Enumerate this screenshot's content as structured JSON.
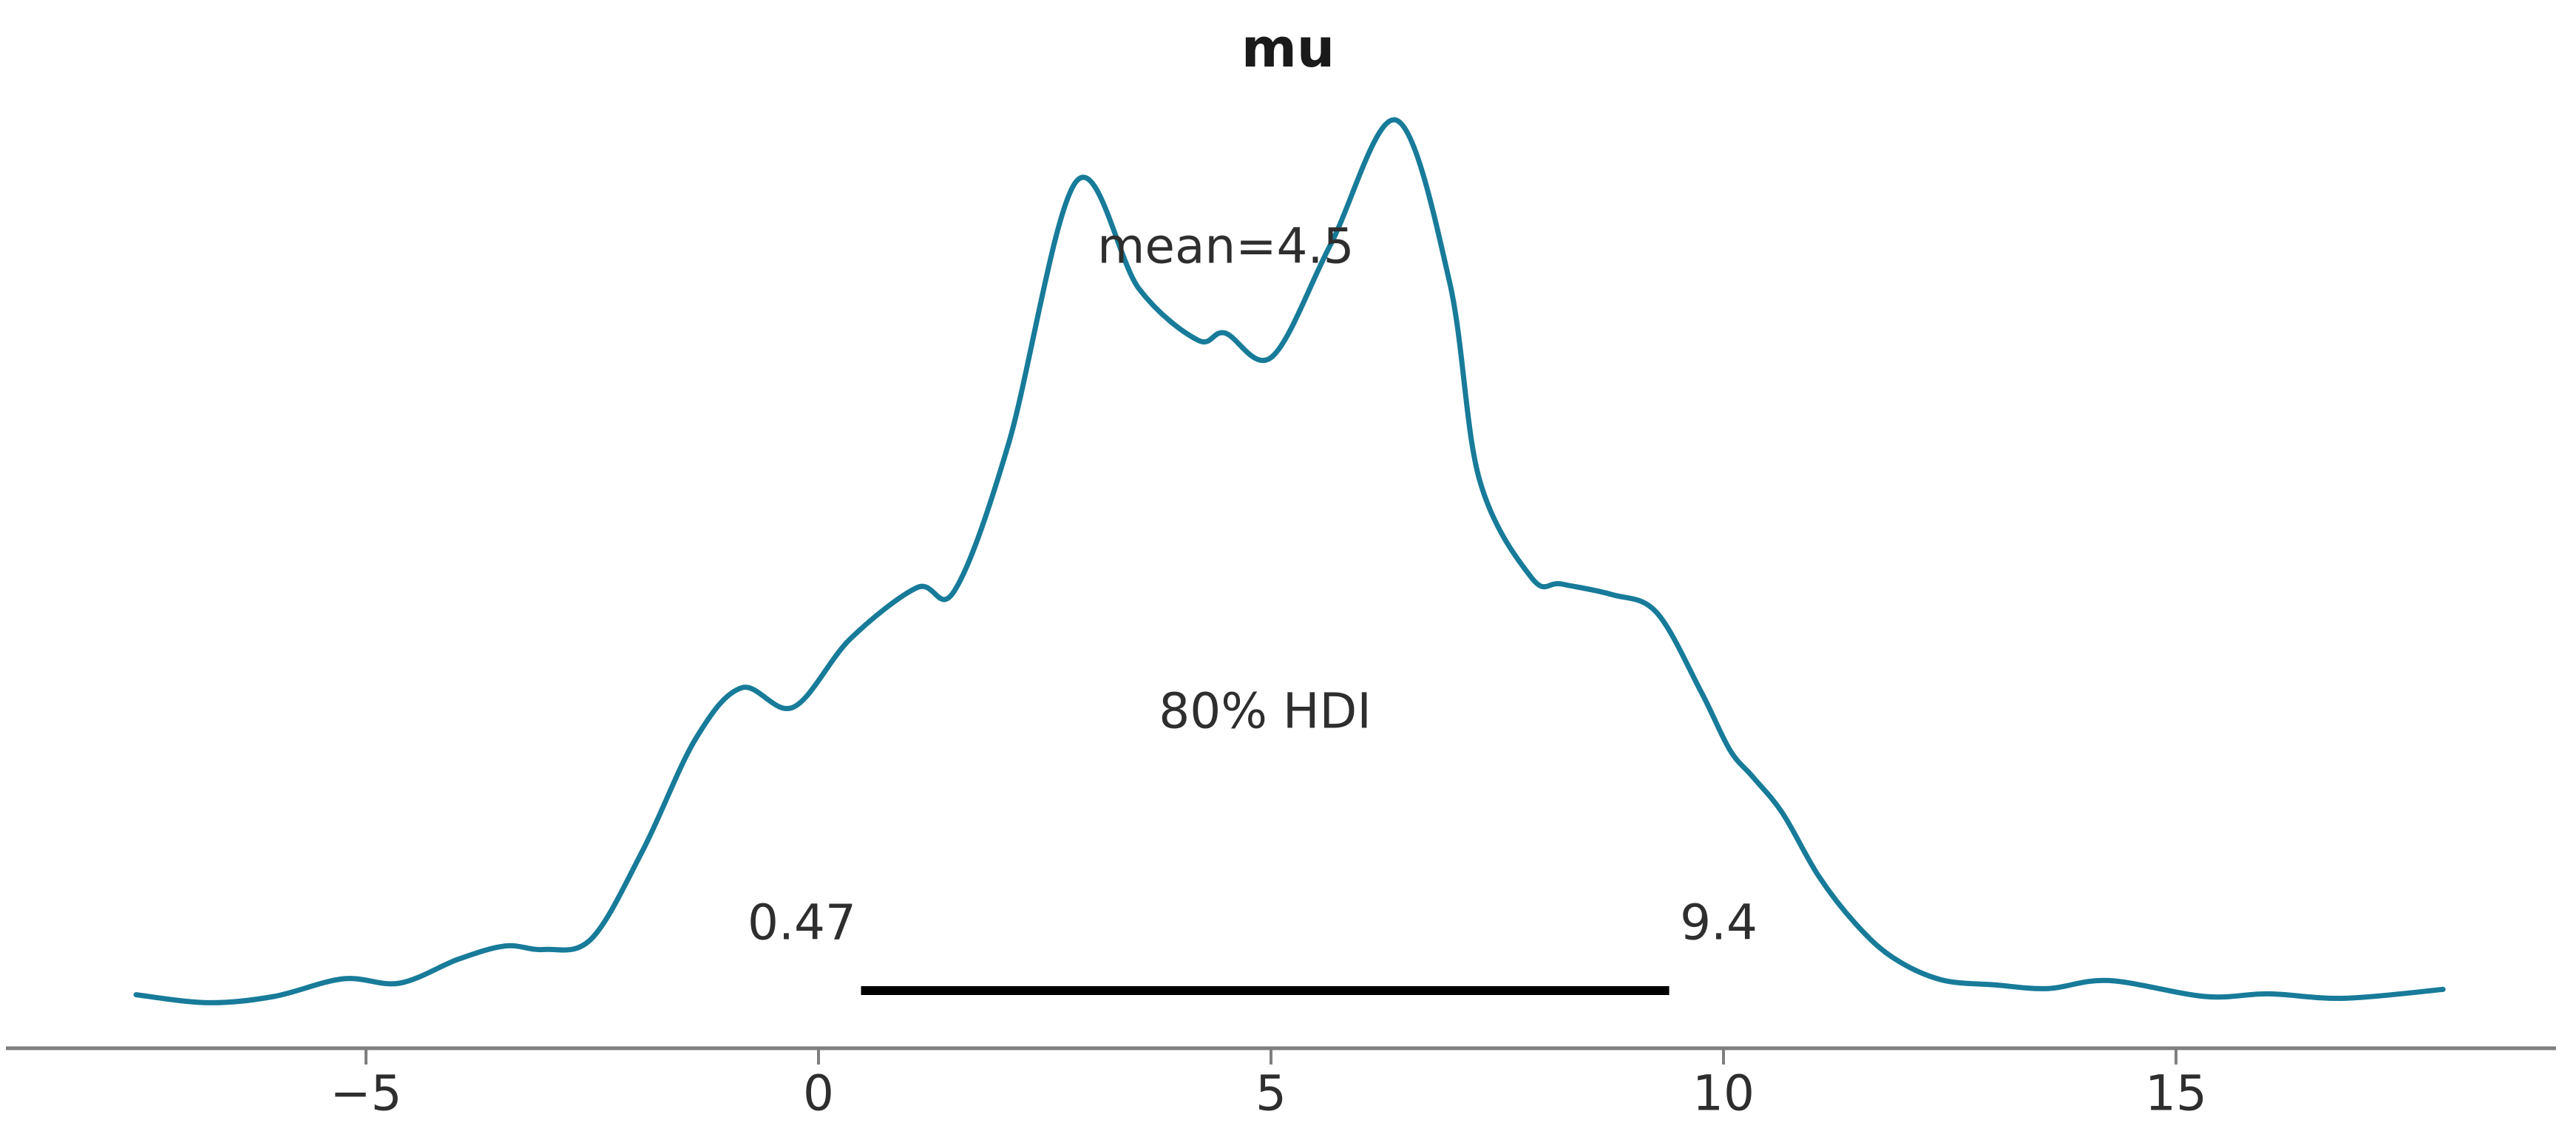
{
  "figure": {
    "background": "#ffffff"
  },
  "chart_data": {
    "type": "line",
    "subtype": "posterior-kde-density",
    "title": "mu",
    "xlabel": "",
    "ylabel": "",
    "xlim": [
      -8.8,
      19.2
    ],
    "grid": false,
    "legend": "none",
    "x_axis": {
      "tick_values": [
        -5,
        0,
        5,
        10,
        15
      ],
      "tick_labels": [
        "−5",
        "0",
        "5",
        "10",
        "15"
      ]
    },
    "series": [
      {
        "name": "mu posterior density",
        "x": [
          -7.54,
          -6.75,
          -6.02,
          -5.25,
          -4.63,
          -3.98,
          -3.46,
          -3.03,
          -2.51,
          -1.94,
          -1.36,
          -0.85,
          -0.28,
          0.35,
          1.09,
          1.5,
          2.1,
          2.85,
          3.54,
          4.19,
          4.49,
          5.01,
          5.66,
          6.38,
          6.97,
          7.3,
          7.88,
          8.21,
          8.77,
          9.26,
          9.75,
          10.07,
          10.32,
          10.65,
          11.05,
          11.46,
          11.87,
          12.4,
          13.01,
          13.59,
          14.26,
          15.32,
          16.02,
          16.86,
          17.95
        ],
        "density": [
          0.012,
          0.003,
          0.01,
          0.03,
          0.025,
          0.052,
          0.067,
          0.063,
          0.075,
          0.175,
          0.3,
          0.358,
          0.336,
          0.413,
          0.471,
          0.467,
          0.633,
          0.929,
          0.808,
          0.75,
          0.758,
          0.731,
          0.858,
          0.998,
          0.817,
          0.594,
          0.482,
          0.475,
          0.463,
          0.443,
          0.354,
          0.288,
          0.258,
          0.217,
          0.146,
          0.092,
          0.054,
          0.029,
          0.023,
          0.019,
          0.028,
          0.01,
          0.013,
          0.008,
          0.018
        ]
      }
    ],
    "annotations": {
      "mean_label": "mean=4.5",
      "mean_value": 4.5,
      "hdi_label": "80% HDI",
      "hdi_lower": 0.47,
      "hdi_upper": 9.4,
      "hdi_lower_label": "0.47",
      "hdi_upper_label": "9.4"
    },
    "colors": {
      "curve": "#177b99",
      "hdi_line": "#000000",
      "axis": "#7f7f7f",
      "text": "#2e2e2e",
      "title_text": "#1a1a1a"
    }
  }
}
